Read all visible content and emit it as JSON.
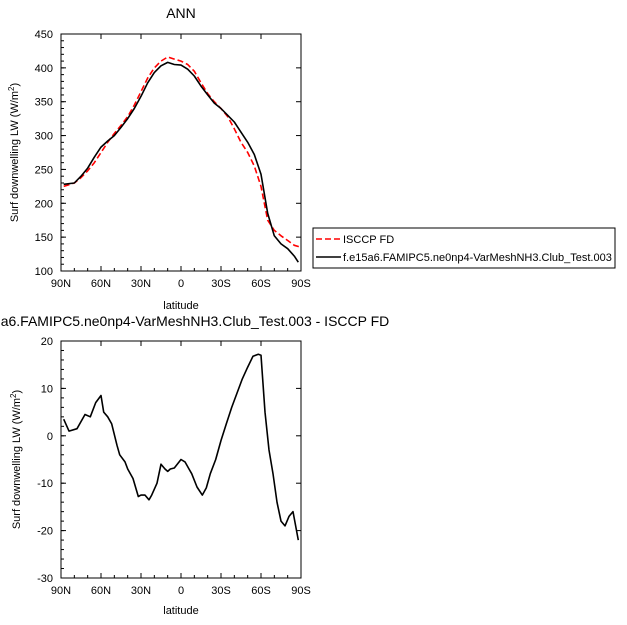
{
  "chart_data": [
    {
      "type": "line",
      "title": "ANN",
      "xlabel": "latitude",
      "ylabel": "Surf downwelling LW (W/m",
      "ylabel_sup": "2",
      "ylabel_close": ")",
      "xlim": [
        90,
        -90
      ],
      "ylim": [
        100,
        450
      ],
      "xticks": [
        90,
        60,
        30,
        0,
        -30,
        -60,
        -90
      ],
      "xtick_labels": [
        "90N",
        "60N",
        "30N",
        "0",
        "30S",
        "60S",
        "90S"
      ],
      "yticks": [
        100,
        150,
        200,
        250,
        300,
        350,
        400,
        450
      ],
      "ytick_labels": [
        "100",
        "150",
        "200",
        "250",
        "300",
        "350",
        "400",
        "450"
      ],
      "legend_position": "right",
      "series": [
        {
          "name": "ISCCP FD",
          "color": "#ff0000",
          "dash": "dashed",
          "x": [
            88,
            80,
            75,
            70,
            65,
            60,
            55,
            50,
            45,
            40,
            35,
            30,
            25,
            20,
            15,
            10,
            5,
            0,
            -5,
            -10,
            -15,
            -20,
            -25,
            -30,
            -35,
            -40,
            -45,
            -50,
            -55,
            -60,
            -65,
            -70,
            -75,
            -80,
            -85,
            -90
          ],
          "y": [
            225,
            230,
            238,
            248,
            260,
            275,
            290,
            303,
            315,
            328,
            345,
            365,
            385,
            400,
            410,
            416,
            413,
            410,
            405,
            395,
            378,
            362,
            350,
            340,
            328,
            310,
            290,
            275,
            255,
            225,
            175,
            160,
            152,
            145,
            138,
            135
          ]
        },
        {
          "name": "f.e15a6.FAMIPC5.ne0np4-VarMeshNH3.Club_Test.003",
          "color": "#000000",
          "dash": "solid",
          "x": [
            88,
            80,
            75,
            70,
            65,
            60,
            55,
            50,
            45,
            40,
            35,
            30,
            25,
            20,
            15,
            10,
            5,
            0,
            -5,
            -10,
            -15,
            -20,
            -25,
            -30,
            -35,
            -40,
            -45,
            -50,
            -55,
            -60,
            -65,
            -70,
            -75,
            -80,
            -85,
            -88
          ],
          "y": [
            228,
            230,
            240,
            252,
            268,
            283,
            292,
            300,
            312,
            325,
            340,
            358,
            378,
            393,
            403,
            408,
            405,
            404,
            398,
            388,
            373,
            360,
            348,
            340,
            330,
            320,
            305,
            290,
            272,
            243,
            185,
            152,
            140,
            133,
            122,
            113
          ]
        }
      ]
    },
    {
      "type": "line",
      "title": "a6.FAMIPC5.ne0np4-VarMeshNH3.Club_Test.003 - ISCCP FD",
      "xlabel": "latitude",
      "ylabel": "Surf downwelling LW (W/m",
      "ylabel_sup": "2",
      "ylabel_close": ")",
      "xlim": [
        90,
        -90
      ],
      "ylim": [
        -30,
        20
      ],
      "xticks": [
        90,
        60,
        30,
        0,
        -30,
        -60,
        -90
      ],
      "xtick_labels": [
        "90N",
        "60N",
        "30N",
        "0",
        "30S",
        "60S",
        "90S"
      ],
      "yticks": [
        -30,
        -20,
        -10,
        0,
        10,
        20
      ],
      "ytick_labels": [
        "-30",
        "-20",
        "-10",
        "0",
        "10",
        "20"
      ],
      "series": [
        {
          "color": "#000000",
          "dash": "solid",
          "x": [
            88,
            84,
            78,
            72,
            68,
            64,
            60,
            58,
            55,
            52,
            48,
            46,
            42,
            40,
            36,
            32,
            30,
            27,
            24,
            22,
            18,
            15,
            12,
            10,
            8,
            5,
            0,
            -3,
            -6,
            -8,
            -12,
            -16,
            -19,
            -22,
            -26,
            -30,
            -34,
            -38,
            -42,
            -46,
            -50,
            -54,
            -58,
            -60,
            -63,
            -66,
            -69,
            -72,
            -75,
            -78,
            -81,
            -84,
            -88
          ],
          "y": [
            3.5,
            1,
            1.5,
            4.5,
            4,
            7,
            8.5,
            5,
            4,
            2.5,
            -2,
            -4,
            -5.5,
            -7,
            -9,
            -12.8,
            -12.5,
            -12.5,
            -13.5,
            -12.5,
            -10,
            -6,
            -7,
            -7.5,
            -7,
            -6.8,
            -5,
            -5.5,
            -7,
            -8,
            -10.8,
            -12.5,
            -11,
            -8,
            -5,
            -1,
            2.5,
            6,
            9,
            12,
            14.5,
            16.8,
            17.2,
            17,
            5,
            -3,
            -8,
            -14,
            -18,
            -19,
            -17,
            -16,
            -22
          ]
        }
      ]
    }
  ]
}
